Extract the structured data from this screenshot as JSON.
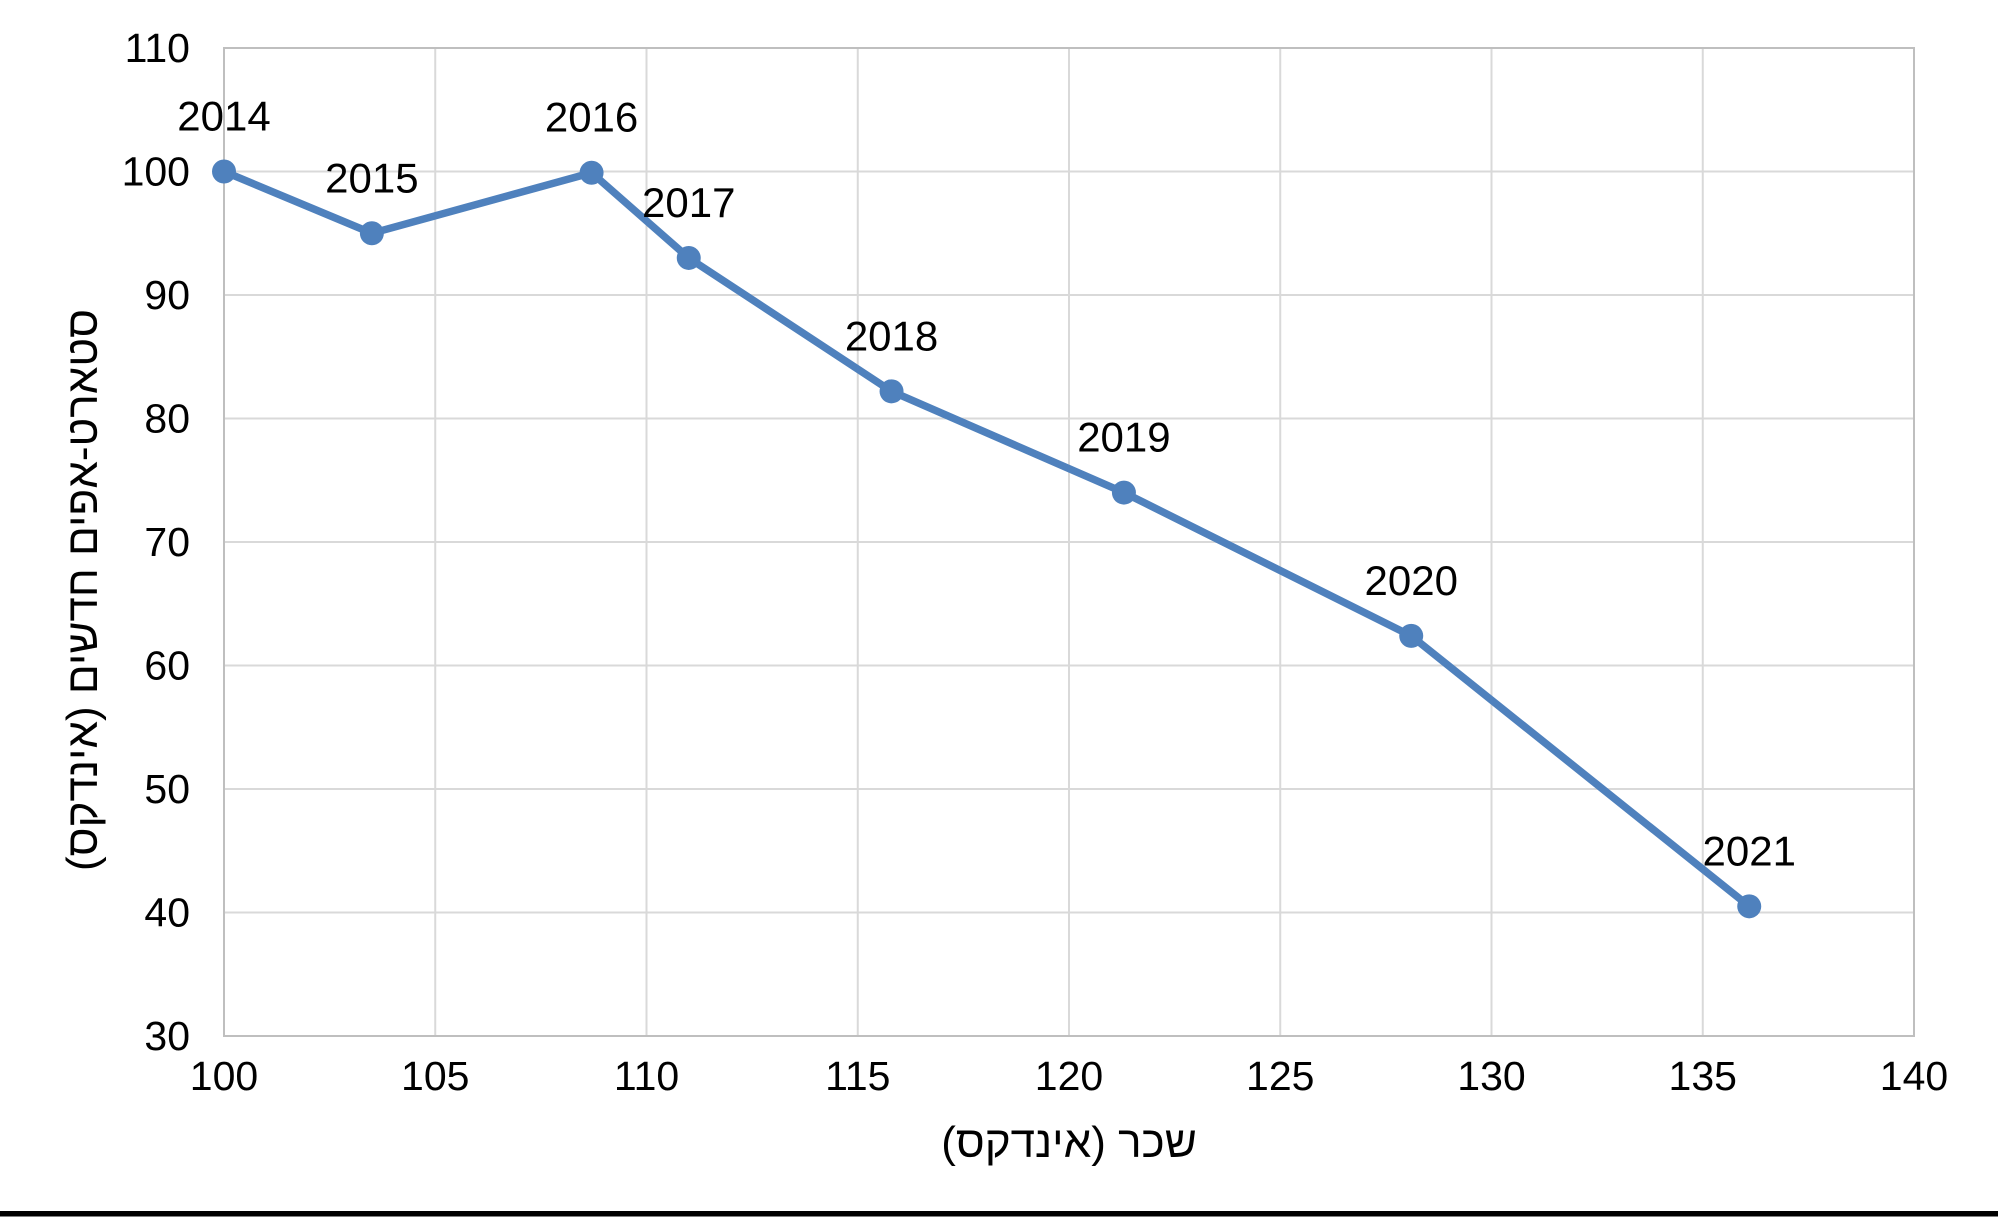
{
  "chart_data": {
    "type": "line",
    "title": "",
    "xlabel": "שכר (אינדקס)",
    "ylabel": "סטארט-אפים חדשים (אינדקס)",
    "xlim": [
      100,
      140
    ],
    "ylim": [
      30,
      110
    ],
    "x_ticks": [
      100,
      105,
      110,
      115,
      120,
      125,
      130,
      135,
      140
    ],
    "y_ticks": [
      30,
      40,
      50,
      60,
      70,
      80,
      90,
      100,
      110
    ],
    "grid": true,
    "legend": "none",
    "series": [
      {
        "name": "new-startups-vs-salary-index",
        "color": "#4f81bd",
        "marker": "circle",
        "points": [
          {
            "label": "2014",
            "x": 100,
            "y": 100
          },
          {
            "label": "2015",
            "x": 103.5,
            "y": 95
          },
          {
            "label": "2016",
            "x": 108.7,
            "y": 99.9
          },
          {
            "label": "2017",
            "x": 111,
            "y": 93
          },
          {
            "label": "2018",
            "x": 115.8,
            "y": 82.2
          },
          {
            "label": "2019",
            "x": 121.3,
            "y": 74
          },
          {
            "label": "2020",
            "x": 128.1,
            "y": 62.4
          },
          {
            "label": "2021",
            "x": 136.1,
            "y": 40.5
          }
        ]
      }
    ]
  },
  "styles": {
    "line_color": "#4f81bd",
    "gridline_color": "#d9d9d9",
    "plot_border_color": "#bfbfbf",
    "label_color": "#000000",
    "background_color": "#ffffff",
    "bottom_rule_color": "#000000"
  }
}
